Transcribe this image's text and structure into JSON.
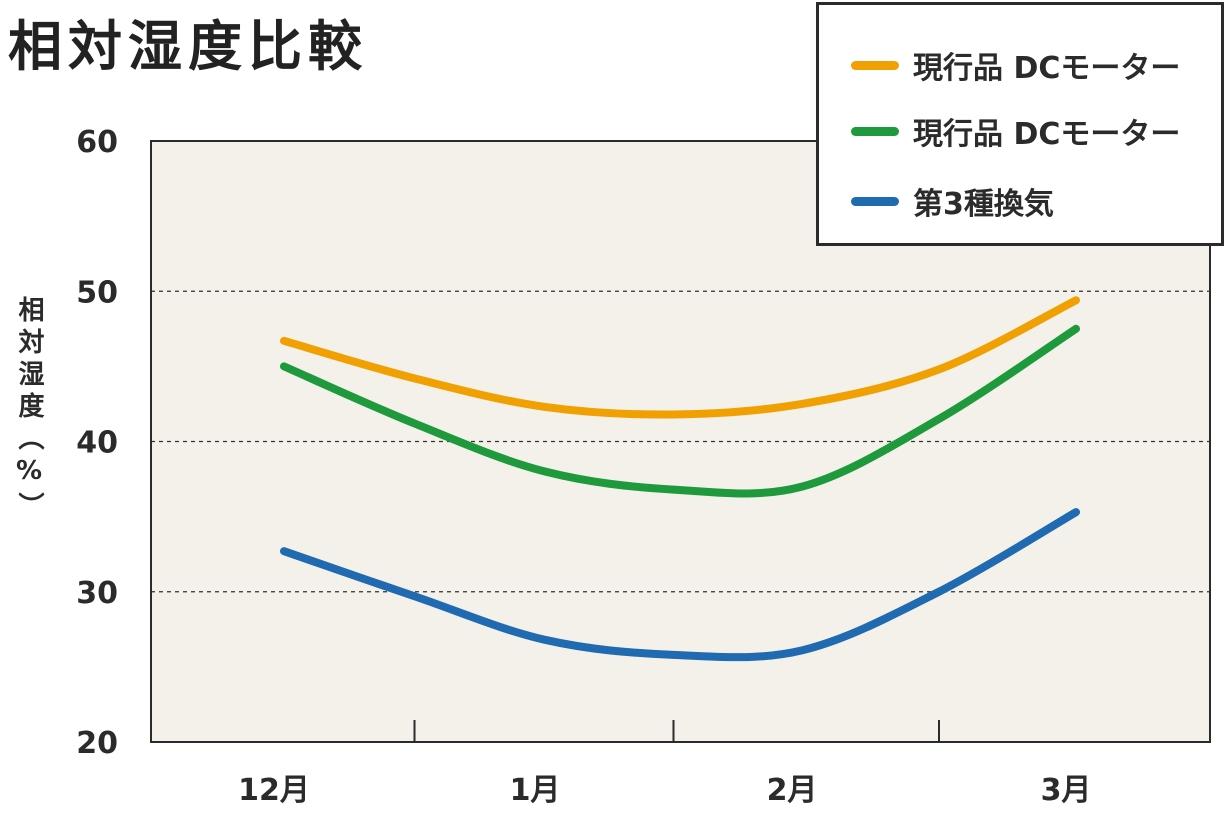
{
  "chart_data": {
    "type": "line",
    "title": "相対湿度比較",
    "ylabel": "相対湿度（%）",
    "xlabel": "",
    "categories": [
      "12月",
      "1月",
      "2月",
      "3月"
    ],
    "ylim": [
      20,
      60
    ],
    "yticks": [
      20,
      30,
      40,
      50,
      60
    ],
    "grid": "horizontal dashed",
    "legend_position": "top-right",
    "series": [
      {
        "name": "現行品 DCモーター",
        "color": "#F0A000",
        "x": [
          0,
          0.5,
          1,
          1.5,
          2,
          2.5,
          3
        ],
        "values": [
          46.7,
          44.2,
          42.3,
          41.8,
          42.5,
          44.8,
          49.4
        ]
      },
      {
        "name": "現行品 DCモーター",
        "color": "#1E9A3C",
        "x": [
          0,
          0.5,
          1,
          1.5,
          2,
          2.5,
          3
        ],
        "values": [
          45.0,
          41.2,
          38.0,
          36.8,
          37.0,
          41.5,
          47.5
        ]
      },
      {
        "name": "第3種換気",
        "color": "#1F6AB0",
        "x": [
          0,
          0.5,
          1,
          1.5,
          2,
          2.5,
          3
        ],
        "values": [
          32.7,
          29.7,
          26.8,
          25.8,
          26.1,
          30.0,
          35.3
        ]
      }
    ]
  }
}
